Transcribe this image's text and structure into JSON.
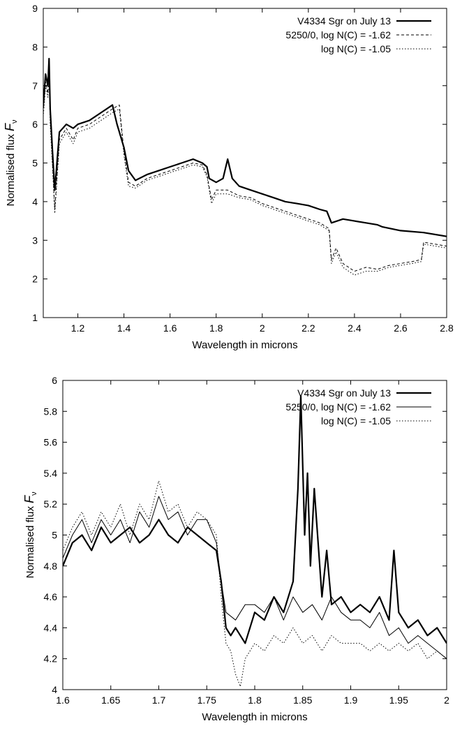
{
  "chart_data": [
    {
      "type": "line",
      "title": "",
      "xlabel": "Wavelength in microns",
      "ylabel_main": "Normalised flux ",
      "ylabel_symbol": "F",
      "ylabel_subscript": "ν",
      "xlim": [
        1.05,
        2.8
      ],
      "ylim": [
        1,
        9
      ],
      "xticks": [
        1.2,
        1.4,
        1.6,
        1.8,
        2.0,
        2.2,
        2.4,
        2.6,
        2.8
      ],
      "xtick_labels": [
        "1.2",
        "1.4",
        "1.6",
        "1.8",
        "2",
        "2.2",
        "2.4",
        "2.6",
        "2.8"
      ],
      "yticks": [
        1,
        2,
        3,
        4,
        5,
        6,
        7,
        8,
        9
      ],
      "ytick_labels": [
        "1",
        "2",
        "3",
        "4",
        "5",
        "6",
        "7",
        "8",
        "9"
      ],
      "grid": false,
      "legend_position": "top-right",
      "series": [
        {
          "name": "V4334 Sgr on July 13",
          "style": "solid-thick",
          "x": [
            1.05,
            1.06,
            1.07,
            1.075,
            1.08,
            1.09,
            1.1,
            1.12,
            1.15,
            1.18,
            1.2,
            1.25,
            1.3,
            1.35,
            1.37,
            1.4,
            1.42,
            1.45,
            1.5,
            1.55,
            1.6,
            1.65,
            1.7,
            1.74,
            1.76,
            1.77,
            1.8,
            1.83,
            1.85,
            1.87,
            1.9,
            1.95,
            2.0,
            2.05,
            2.1,
            2.15,
            2.2,
            2.25,
            2.28,
            2.3,
            2.35,
            2.4,
            2.45,
            2.5,
            2.52,
            2.6,
            2.7,
            2.8
          ],
          "y": [
            6.5,
            7.3,
            7.0,
            7.7,
            6.4,
            5.3,
            4.3,
            5.8,
            6.0,
            5.9,
            6.0,
            6.1,
            6.3,
            6.5,
            6.0,
            5.4,
            4.8,
            4.55,
            4.7,
            4.8,
            4.9,
            5.0,
            5.1,
            5.0,
            4.9,
            4.6,
            4.5,
            4.6,
            5.1,
            4.6,
            4.4,
            4.3,
            4.2,
            4.1,
            4.0,
            3.95,
            3.9,
            3.8,
            3.75,
            3.45,
            3.55,
            3.5,
            3.45,
            3.4,
            3.35,
            3.25,
            3.2,
            3.1
          ]
        },
        {
          "name": "5250/0, log N(C) = -1.62",
          "style": "dashed",
          "x": [
            1.05,
            1.06,
            1.07,
            1.075,
            1.08,
            1.09,
            1.1,
            1.12,
            1.15,
            1.18,
            1.2,
            1.25,
            1.3,
            1.35,
            1.38,
            1.4,
            1.42,
            1.45,
            1.5,
            1.55,
            1.6,
            1.65,
            1.7,
            1.74,
            1.76,
            1.78,
            1.8,
            1.85,
            1.9,
            1.95,
            2.0,
            2.05,
            2.1,
            2.15,
            2.2,
            2.25,
            2.29,
            2.3,
            2.32,
            2.35,
            2.4,
            2.45,
            2.5,
            2.55,
            2.6,
            2.65,
            2.69,
            2.7,
            2.75,
            2.8
          ],
          "y": [
            6.3,
            7.1,
            6.8,
            7.4,
            6.2,
            5.0,
            3.8,
            5.6,
            5.9,
            5.6,
            5.9,
            6.0,
            6.2,
            6.4,
            6.5,
            5.3,
            4.5,
            4.4,
            4.6,
            4.7,
            4.8,
            4.9,
            5.0,
            4.95,
            4.7,
            4.05,
            4.3,
            4.3,
            4.15,
            4.1,
            3.95,
            3.85,
            3.75,
            3.65,
            3.55,
            3.45,
            3.3,
            2.5,
            2.8,
            2.4,
            2.2,
            2.3,
            2.25,
            2.35,
            2.4,
            2.45,
            2.5,
            2.95,
            2.9,
            2.85
          ]
        },
        {
          "name": "log N(C) = -1.05",
          "style": "dotted",
          "x": [
            1.05,
            1.06,
            1.07,
            1.075,
            1.08,
            1.09,
            1.1,
            1.12,
            1.15,
            1.18,
            1.2,
            1.25,
            1.3,
            1.35,
            1.38,
            1.4,
            1.42,
            1.45,
            1.5,
            1.55,
            1.6,
            1.65,
            1.7,
            1.74,
            1.76,
            1.78,
            1.8,
            1.85,
            1.9,
            1.95,
            2.0,
            2.05,
            2.1,
            2.15,
            2.2,
            2.25,
            2.29,
            2.3,
            2.32,
            2.35,
            2.4,
            2.45,
            2.5,
            2.55,
            2.6,
            2.65,
            2.69,
            2.7,
            2.75,
            2.8
          ],
          "y": [
            6.2,
            7.0,
            6.7,
            7.3,
            6.0,
            4.9,
            3.7,
            5.5,
            5.8,
            5.5,
            5.8,
            5.9,
            6.1,
            6.3,
            6.4,
            5.2,
            4.4,
            4.35,
            4.55,
            4.65,
            4.75,
            4.85,
            4.95,
            4.9,
            4.65,
            3.95,
            4.2,
            4.2,
            4.1,
            4.05,
            3.9,
            3.8,
            3.7,
            3.6,
            3.5,
            3.4,
            3.25,
            2.4,
            2.7,
            2.3,
            2.1,
            2.2,
            2.2,
            2.3,
            2.35,
            2.4,
            2.45,
            2.9,
            2.85,
            2.8
          ]
        }
      ]
    },
    {
      "type": "line",
      "title": "",
      "xlabel": "Wavelength in microns",
      "ylabel_main": "Normalised flux ",
      "ylabel_symbol": "F",
      "ylabel_subscript": "ν",
      "xlim": [
        1.6,
        2.0
      ],
      "ylim": [
        4,
        6
      ],
      "xticks": [
        1.6,
        1.65,
        1.7,
        1.75,
        1.8,
        1.85,
        1.9,
        1.95,
        2.0
      ],
      "xtick_labels": [
        "1.6",
        "1.65",
        "1.7",
        "1.75",
        "1.8",
        "1.85",
        "1.9",
        "1.95",
        "2"
      ],
      "yticks": [
        4,
        4.2,
        4.4,
        4.6,
        4.8,
        5,
        5.2,
        5.4,
        5.6,
        5.8,
        6
      ],
      "ytick_labels": [
        "4",
        "4.2",
        "4.4",
        "4.6",
        "4.8",
        "5",
        "5.2",
        "5.4",
        "5.6",
        "5.8",
        "6"
      ],
      "grid": false,
      "legend_position": "top-right",
      "series": [
        {
          "name": "V4334 Sgr on July 13",
          "style": "solid-thick",
          "x": [
            1.6,
            1.61,
            1.62,
            1.63,
            1.64,
            1.65,
            1.66,
            1.67,
            1.68,
            1.69,
            1.7,
            1.71,
            1.72,
            1.73,
            1.74,
            1.75,
            1.76,
            1.765,
            1.77,
            1.775,
            1.78,
            1.79,
            1.8,
            1.81,
            1.82,
            1.83,
            1.84,
            1.845,
            1.848,
            1.852,
            1.855,
            1.858,
            1.862,
            1.87,
            1.875,
            1.88,
            1.89,
            1.9,
            1.91,
            1.92,
            1.93,
            1.94,
            1.945,
            1.95,
            1.96,
            1.97,
            1.98,
            1.99,
            2.0
          ],
          "y": [
            4.8,
            4.95,
            5.0,
            4.9,
            5.05,
            4.95,
            5.0,
            5.05,
            4.95,
            5.0,
            5.1,
            5.0,
            4.95,
            5.05,
            5.0,
            4.95,
            4.9,
            4.7,
            4.4,
            4.35,
            4.4,
            4.3,
            4.5,
            4.45,
            4.6,
            4.5,
            4.7,
            5.3,
            5.9,
            5.0,
            5.4,
            4.8,
            5.3,
            4.6,
            4.9,
            4.55,
            4.6,
            4.5,
            4.55,
            4.5,
            4.6,
            4.45,
            4.9,
            4.5,
            4.4,
            4.45,
            4.35,
            4.4,
            4.3
          ]
        },
        {
          "name": "5250/0, log N(C) = -1.62",
          "style": "solid-thin",
          "x": [
            1.6,
            1.61,
            1.62,
            1.63,
            1.64,
            1.65,
            1.66,
            1.67,
            1.68,
            1.69,
            1.7,
            1.71,
            1.72,
            1.73,
            1.74,
            1.75,
            1.76,
            1.765,
            1.77,
            1.78,
            1.79,
            1.8,
            1.81,
            1.82,
            1.83,
            1.84,
            1.85,
            1.86,
            1.87,
            1.88,
            1.89,
            1.9,
            1.91,
            1.92,
            1.93,
            1.94,
            1.95,
            1.96,
            1.97,
            1.98,
            1.99,
            2.0
          ],
          "y": [
            4.85,
            5.0,
            5.1,
            4.95,
            5.1,
            5.0,
            5.1,
            4.95,
            5.15,
            5.05,
            5.25,
            5.1,
            5.15,
            5.0,
            5.1,
            5.1,
            4.95,
            4.7,
            4.5,
            4.45,
            4.55,
            4.55,
            4.5,
            4.6,
            4.45,
            4.6,
            4.5,
            4.55,
            4.45,
            4.6,
            4.5,
            4.45,
            4.45,
            4.4,
            4.5,
            4.35,
            4.4,
            4.3,
            4.35,
            4.3,
            4.25,
            4.2
          ]
        },
        {
          "name": "log N(C) = -1.05",
          "style": "dotted",
          "x": [
            1.6,
            1.61,
            1.62,
            1.63,
            1.64,
            1.65,
            1.66,
            1.67,
            1.68,
            1.69,
            1.7,
            1.71,
            1.72,
            1.73,
            1.74,
            1.75,
            1.76,
            1.765,
            1.77,
            1.775,
            1.78,
            1.785,
            1.79,
            1.8,
            1.81,
            1.82,
            1.83,
            1.84,
            1.85,
            1.86,
            1.87,
            1.88,
            1.89,
            1.9,
            1.91,
            1.92,
            1.93,
            1.94,
            1.95,
            1.96,
            1.97,
            1.98,
            1.99,
            2.0
          ],
          "y": [
            4.9,
            5.05,
            5.15,
            5.0,
            5.15,
            5.05,
            5.2,
            5.0,
            5.2,
            5.1,
            5.35,
            5.15,
            5.2,
            5.05,
            5.15,
            5.1,
            5.0,
            4.6,
            4.3,
            4.25,
            4.1,
            4.02,
            4.2,
            4.3,
            4.25,
            4.35,
            4.3,
            4.4,
            4.3,
            4.35,
            4.25,
            4.35,
            4.3,
            4.3,
            4.3,
            4.25,
            4.3,
            4.25,
            4.3,
            4.25,
            4.3,
            4.2,
            4.25,
            4.2
          ]
        }
      ]
    }
  ]
}
